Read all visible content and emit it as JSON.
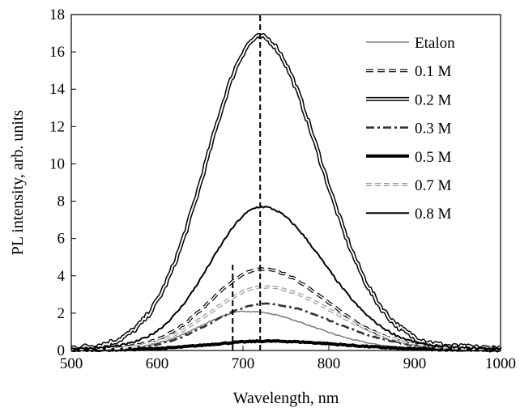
{
  "chart_data": {
    "type": "line",
    "title": "",
    "xlabel": "Wavelength, nm",
    "ylabel": "PL intensity, arb. units",
    "xlim": [
      500,
      1000
    ],
    "ylim": [
      0,
      18
    ],
    "xticks": [
      500,
      600,
      700,
      800,
      900,
      1000
    ],
    "yticks": [
      0,
      2,
      4,
      6,
      8,
      10,
      12,
      14,
      16,
      18
    ],
    "grid": false,
    "legend_position": "top-right",
    "reference_lines": [
      {
        "x": 720,
        "y_range": [
          0,
          18
        ],
        "style": "dashed"
      },
      {
        "x": 688,
        "y_range": [
          0,
          4.7
        ],
        "style": "dashed"
      }
    ],
    "series": [
      {
        "name": "Etalon",
        "style": "solid-thin",
        "color": "#808080",
        "peak_x": 705,
        "peak_y": 2.1,
        "left_sigma": 55,
        "right_sigma": 75,
        "baseline": 0.05
      },
      {
        "name": "0.1 M",
        "style": "double-dashed",
        "color": "#000000",
        "peak_x": 722,
        "peak_y": 4.35,
        "left_sigma": 60,
        "right_sigma": 75,
        "baseline": 0.05
      },
      {
        "name": "0.2 M",
        "style": "double",
        "color": "#000000",
        "peak_x": 720,
        "peak_y": 16.8,
        "left_sigma": 62,
        "right_sigma": 70,
        "baseline": 0.1
      },
      {
        "name": "0.3 M",
        "style": "dash-dot",
        "color": "#333333",
        "peak_x": 725,
        "peak_y": 2.5,
        "left_sigma": 60,
        "right_sigma": 80,
        "baseline": 0.05
      },
      {
        "name": "0.5 M",
        "style": "thick",
        "color": "#000000",
        "peak_x": 730,
        "peak_y": 0.5,
        "left_sigma": 70,
        "right_sigma": 85,
        "baseline": 0.02
      },
      {
        "name": "0.7 M",
        "style": "double-dashed-gray",
        "color": "#9a9a9a",
        "peak_x": 725,
        "peak_y": 3.4,
        "left_sigma": 62,
        "right_sigma": 80,
        "baseline": 0.05
      },
      {
        "name": "0.8 M",
        "style": "solid",
        "color": "#000000",
        "peak_x": 722,
        "peak_y": 7.7,
        "left_sigma": 60,
        "right_sigma": 72,
        "baseline": 0.1
      }
    ]
  }
}
